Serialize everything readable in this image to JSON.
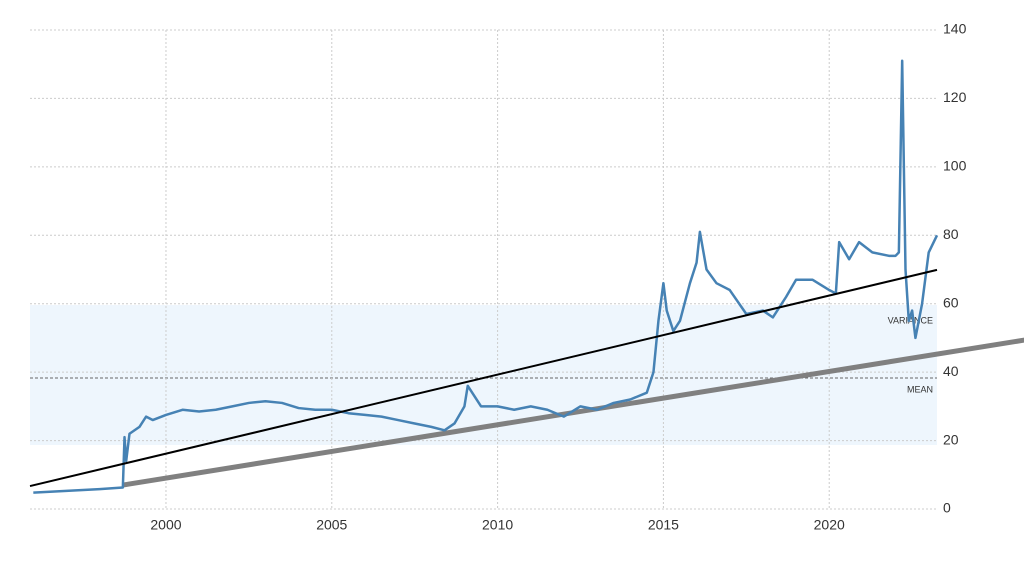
{
  "chart_data": {
    "type": "line",
    "x": [
      1996.0,
      1997.0,
      1998.0,
      1998.7,
      1998.75,
      1998.8,
      1998.9,
      1999.2,
      1999.4,
      1999.6,
      2000.0,
      2000.5,
      2001.0,
      2001.5,
      2002.0,
      2002.5,
      2003.0,
      2003.5,
      2004.0,
      2004.5,
      2005.0,
      2005.5,
      2006.0,
      2006.5,
      2007.0,
      2007.5,
      2008.0,
      2008.4,
      2008.7,
      2009.0,
      2009.1,
      2009.3,
      2009.5,
      2010.0,
      2010.5,
      2011.0,
      2011.5,
      2012.0,
      2012.5,
      2013.0,
      2013.5,
      2014.0,
      2014.5,
      2014.7,
      2014.85,
      2015.0,
      2015.1,
      2015.3,
      2015.5,
      2015.8,
      2016.0,
      2016.1,
      2016.3,
      2016.6,
      2017.0,
      2017.5,
      2018.0,
      2018.3,
      2018.7,
      2019.0,
      2019.5,
      2020.0,
      2020.2,
      2020.3,
      2020.6,
      2020.9,
      2021.3,
      2021.8,
      2022.0,
      2022.1,
      2022.2,
      2022.3,
      2022.4,
      2022.5,
      2022.6,
      2022.8,
      2023.0,
      2023.25
    ],
    "series": [
      {
        "color": "#4682b4",
        "values": [
          4.8,
          5.3,
          5.8,
          6.3,
          21,
          14,
          22,
          24,
          27,
          26,
          27.5,
          29,
          28.5,
          29,
          30,
          31,
          31.5,
          31,
          29.5,
          29,
          29,
          28,
          27.5,
          27,
          26,
          25,
          24,
          23,
          25,
          30,
          36,
          33,
          30,
          30,
          29,
          30,
          29,
          27,
          30,
          29,
          31,
          32,
          34,
          40,
          55,
          66,
          58,
          52,
          55,
          66,
          72,
          81,
          70,
          66,
          64,
          57,
          58,
          56,
          62,
          67,
          67,
          64,
          63,
          78,
          73,
          78,
          75,
          74,
          74,
          75,
          131,
          70,
          55,
          58,
          50,
          60,
          75,
          80
        ]
      }
    ],
    "trend_line": {
      "x": [
        1995.9,
        2023.25
      ],
      "values": [
        6.7,
        69.9
      ]
    },
    "mean_trend_line": {
      "x": [
        1998.7,
        2025.9
      ],
      "values": [
        7,
        49.4
      ]
    },
    "variance_band": {
      "low": 18.7,
      "high": 59.6,
      "label": "VARIANCE"
    },
    "mean": {
      "value": 38.3,
      "label": "MEAN"
    },
    "xlim": [
      1995.9,
      2023.25
    ],
    "xticks": [
      2000,
      2005,
      2010,
      2015,
      2020
    ],
    "ylim": [
      0,
      140
    ],
    "yticks": [
      0,
      20,
      40,
      60,
      80,
      100,
      120,
      140
    ],
    "grid": true
  }
}
